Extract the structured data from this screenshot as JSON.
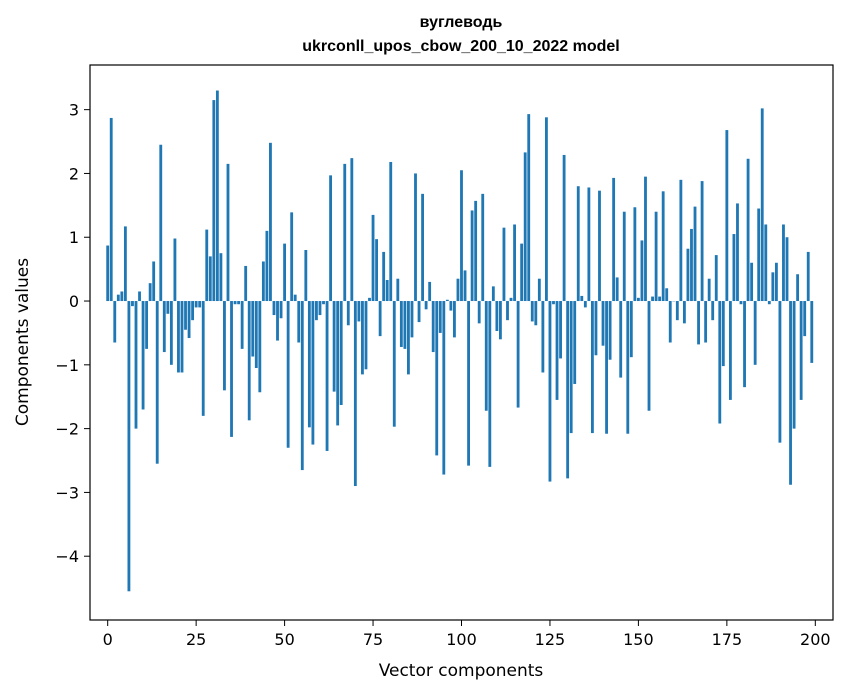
{
  "chart_data": {
    "type": "bar",
    "title": "вуглеводь",
    "subtitle": "ukrconll_upos_cbow_200_10_2022 model",
    "xlabel": "Vector components",
    "ylabel": "Components values",
    "xlim": [
      -5,
      205
    ],
    "ylim": [
      -5.0,
      3.7
    ],
    "xticks": [
      0,
      25,
      50,
      75,
      100,
      125,
      150,
      175,
      200
    ],
    "yticks": [
      -4,
      -3,
      -2,
      -1,
      0,
      1,
      2,
      3
    ],
    "xtick_labels": [
      "0",
      "25",
      "50",
      "75",
      "100",
      "125",
      "150",
      "175",
      "200"
    ],
    "ytick_labels": [
      "−4",
      "−3",
      "−2",
      "−1",
      "0",
      "1",
      "2",
      "3"
    ],
    "grid": false,
    "bar_color": "#1f77b4",
    "x": [
      0,
      1,
      2,
      3,
      4,
      5,
      6,
      7,
      8,
      9,
      10,
      11,
      12,
      13,
      14,
      15,
      16,
      17,
      18,
      19,
      20,
      21,
      22,
      23,
      24,
      25,
      26,
      27,
      28,
      29,
      30,
      31,
      32,
      33,
      34,
      35,
      36,
      37,
      38,
      39,
      40,
      41,
      42,
      43,
      44,
      45,
      46,
      47,
      48,
      49,
      50,
      51,
      52,
      53,
      54,
      55,
      56,
      57,
      58,
      59,
      60,
      61,
      62,
      63,
      64,
      65,
      66,
      67,
      68,
      69,
      70,
      71,
      72,
      73,
      74,
      75,
      76,
      77,
      78,
      79,
      80,
      81,
      82,
      83,
      84,
      85,
      86,
      87,
      88,
      89,
      90,
      91,
      92,
      93,
      94,
      95,
      96,
      97,
      98,
      99,
      100,
      101,
      102,
      103,
      104,
      105,
      106,
      107,
      108,
      109,
      110,
      111,
      112,
      113,
      114,
      115,
      116,
      117,
      118,
      119,
      120,
      121,
      122,
      123,
      124,
      125,
      126,
      127,
      128,
      129,
      130,
      131,
      132,
      133,
      134,
      135,
      136,
      137,
      138,
      139,
      140,
      141,
      142,
      143,
      144,
      145,
      146,
      147,
      148,
      149,
      150,
      151,
      152,
      153,
      154,
      155,
      156,
      157,
      158,
      159,
      160,
      161,
      162,
      163,
      164,
      165,
      166,
      167,
      168,
      169,
      170,
      171,
      172,
      173,
      174,
      175,
      176,
      177,
      178,
      179,
      180,
      181,
      182,
      183,
      184,
      185,
      186,
      187,
      188,
      189,
      190,
      191,
      192,
      193,
      194,
      195,
      196,
      197,
      198,
      199
    ],
    "values": [
      0.87,
      2.87,
      -0.65,
      0.1,
      0.15,
      1.17,
      -4.55,
      -0.08,
      -2.0,
      0.15,
      -1.7,
      -0.75,
      0.28,
      0.62,
      -2.55,
      2.45,
      -0.8,
      -0.2,
      -1.0,
      0.98,
      -1.12,
      -1.12,
      -0.45,
      -0.58,
      -0.3,
      -0.1,
      -0.1,
      -1.8,
      1.12,
      0.7,
      3.15,
      3.3,
      0.75,
      -1.4,
      2.15,
      -2.13,
      -0.05,
      -0.05,
      -0.75,
      0.55,
      -1.87,
      -0.87,
      -1.05,
      -1.43,
      0.62,
      1.1,
      2.48,
      -0.22,
      -0.62,
      -0.27,
      0.9,
      -2.3,
      1.39,
      0.1,
      -0.65,
      -2.65,
      0.8,
      -1.98,
      -2.25,
      -0.3,
      -0.22,
      -0.05,
      -2.35,
      1.97,
      -1.42,
      -1.95,
      -1.63,
      2.15,
      -0.38,
      2.24,
      -2.9,
      -0.32,
      -1.15,
      -1.07,
      0.05,
      1.35,
      0.97,
      -0.55,
      0.77,
      0.33,
      2.18,
      -1.97,
      0.35,
      -0.72,
      -0.75,
      -1.15,
      -0.57,
      2.0,
      -0.33,
      1.68,
      -0.13,
      0.3,
      -0.8,
      -2.42,
      -0.5,
      -2.72,
      0.02,
      -0.15,
      -0.57,
      0.35,
      2.05,
      0.48,
      -2.58,
      1.42,
      1.57,
      -0.35,
      1.68,
      -1.72,
      -2.6,
      0.23,
      -0.47,
      -0.6,
      1.15,
      -0.3,
      0.05,
      1.2,
      -1.67,
      0.9,
      2.33,
      2.93,
      -0.32,
      -0.38,
      0.35,
      -1.12,
      2.88,
      -2.83,
      -0.05,
      -1.55,
      -0.9,
      2.29,
      -2.78,
      -2.07,
      -1.3,
      1.8,
      0.08,
      -0.1,
      1.78,
      -2.07,
      -0.85,
      1.73,
      -0.7,
      -2.08,
      -0.92,
      1.93,
      0.37,
      -1.2,
      1.4,
      -2.08,
      -0.88,
      1.47,
      0.05,
      0.95,
      1.95,
      -1.72,
      0.07,
      1.4,
      0.07,
      1.72,
      0.2,
      -0.65,
      0.0,
      -0.3,
      1.9,
      -0.35,
      0.82,
      1.13,
      1.48,
      -0.68,
      1.88,
      -0.65,
      0.35,
      -0.3,
      0.72,
      -1.92,
      -1.02,
      2.68,
      -1.55,
      1.05,
      1.53,
      -0.05,
      -1.35,
      2.23,
      0.6,
      -1.0,
      1.45,
      3.02,
      1.2,
      -0.05,
      0.45,
      0.6,
      -2.22,
      1.2,
      1.0,
      -2.88,
      -2.0,
      0.42,
      -1.55,
      -0.55,
      0.77,
      -0.97
    ]
  }
}
